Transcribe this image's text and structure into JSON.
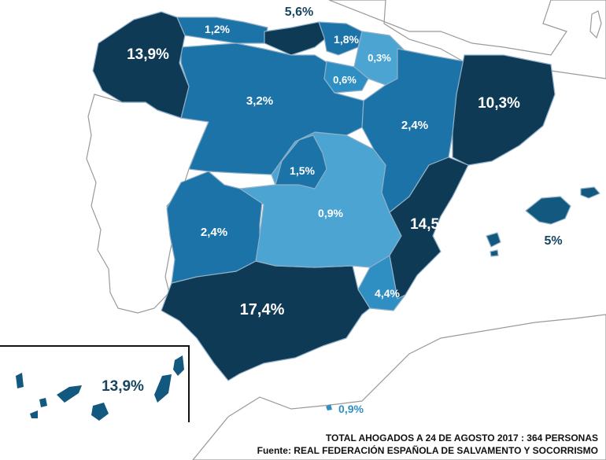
{
  "colors": {
    "darkest": "#0e3a56",
    "dark": "#13587f",
    "medium": "#1b73a8",
    "light": "#2f8fc3",
    "lightest": "#4ca4d3",
    "label_dark": "#17455f"
  },
  "regions": {
    "galicia": "13,9%",
    "asturias": "1,2%",
    "cantabria": "5,6%",
    "pais_vasco": "1,8%",
    "navarra": "0,3%",
    "la_rioja": "0,6%",
    "castilla_leon": "3,2%",
    "aragon": "2,4%",
    "cataluna": "10,3%",
    "madrid": "1,5%",
    "castilla_la_mancha": "0,9%",
    "extremadura": "2,4%",
    "valencia": "14,5%",
    "baleares": "5%",
    "murcia": "4,4%",
    "andalucia": "17,4%",
    "canarias": "13,9%",
    "ceuta_melilla": "0,9%"
  },
  "footer": {
    "line1": "TOTAL AHOGADOS A 24 DE AGOSTO 2017 : 364 PERSONAS",
    "line2": "Fuente: REAL FEDERACIÓN ESPAÑOLA DE SALVAMENTO Y SOCORRISMO"
  }
}
